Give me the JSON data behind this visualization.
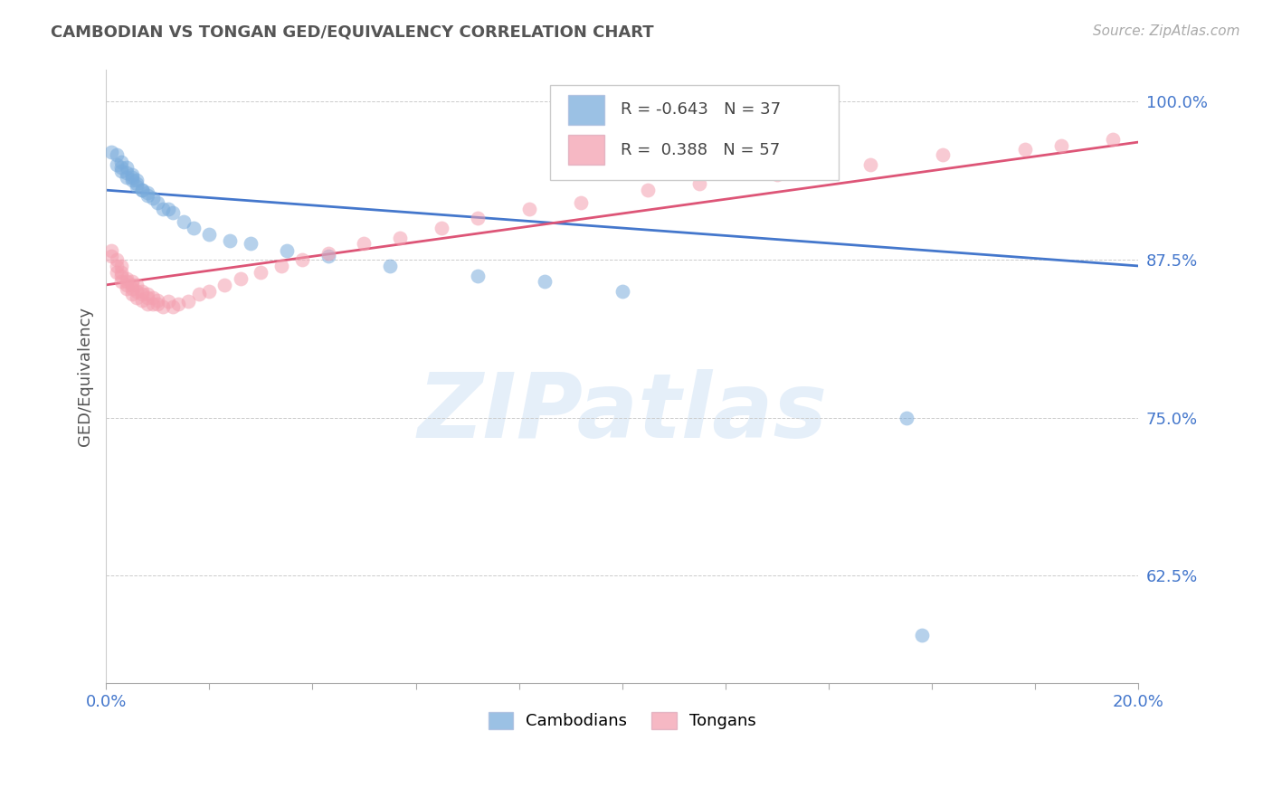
{
  "title": "CAMBODIAN VS TONGAN GED/EQUIVALENCY CORRELATION CHART",
  "source": "Source: ZipAtlas.com",
  "ylabel": "GED/Equivalency",
  "legend_blue_label": "Cambodians",
  "legend_pink_label": "Tongans",
  "R_blue": -0.643,
  "N_blue": 37,
  "R_pink": 0.388,
  "N_pink": 57,
  "xmin": 0.0,
  "xmax": 0.2,
  "ymin": 0.54,
  "ymax": 1.025,
  "yticks": [
    0.625,
    0.75,
    0.875,
    1.0
  ],
  "ytick_labels": [
    "62.5%",
    "75.0%",
    "87.5%",
    "100.0%"
  ],
  "background_color": "#ffffff",
  "blue_color": "#7aacdc",
  "pink_color": "#f4a0b0",
  "blue_line_color": "#4477cc",
  "pink_line_color": "#dd5577",
  "blue_line_y0": 0.93,
  "blue_line_y1": 0.87,
  "pink_line_y0": 0.855,
  "pink_line_y1": 0.968,
  "watermark_text": "ZIPatlas",
  "cam_x": [
    0.001,
    0.002,
    0.002,
    0.003,
    0.003,
    0.003,
    0.004,
    0.004,
    0.004,
    0.005,
    0.005,
    0.005,
    0.006,
    0.006,
    0.006,
    0.007,
    0.007,
    0.008,
    0.008,
    0.009,
    0.01,
    0.011,
    0.012,
    0.013,
    0.015,
    0.017,
    0.02,
    0.024,
    0.028,
    0.035,
    0.043,
    0.055,
    0.072,
    0.085,
    0.1,
    0.155,
    0.158
  ],
  "cam_y": [
    0.96,
    0.95,
    0.958,
    0.945,
    0.952,
    0.948,
    0.94,
    0.948,
    0.944,
    0.942,
    0.94,
    0.938,
    0.938,
    0.935,
    0.933,
    0.93,
    0.93,
    0.928,
    0.926,
    0.924,
    0.92,
    0.915,
    0.915,
    0.912,
    0.905,
    0.9,
    0.895,
    0.89,
    0.888,
    0.882,
    0.878,
    0.87,
    0.862,
    0.858,
    0.85,
    0.75,
    0.578
  ],
  "tong_x": [
    0.001,
    0.001,
    0.002,
    0.002,
    0.002,
    0.003,
    0.003,
    0.003,
    0.003,
    0.004,
    0.004,
    0.004,
    0.004,
    0.005,
    0.005,
    0.005,
    0.005,
    0.006,
    0.006,
    0.006,
    0.007,
    0.007,
    0.007,
    0.008,
    0.008,
    0.008,
    0.009,
    0.009,
    0.01,
    0.01,
    0.011,
    0.012,
    0.013,
    0.014,
    0.016,
    0.018,
    0.02,
    0.023,
    0.026,
    0.03,
    0.034,
    0.038,
    0.043,
    0.05,
    0.057,
    0.065,
    0.072,
    0.082,
    0.092,
    0.105,
    0.115,
    0.13,
    0.148,
    0.162,
    0.178,
    0.185,
    0.195
  ],
  "tong_y": [
    0.882,
    0.878,
    0.875,
    0.87,
    0.865,
    0.87,
    0.865,
    0.862,
    0.858,
    0.86,
    0.858,
    0.855,
    0.852,
    0.858,
    0.855,
    0.852,
    0.848,
    0.855,
    0.85,
    0.845,
    0.85,
    0.848,
    0.843,
    0.848,
    0.845,
    0.84,
    0.845,
    0.84,
    0.843,
    0.84,
    0.838,
    0.842,
    0.838,
    0.84,
    0.842,
    0.848,
    0.85,
    0.855,
    0.86,
    0.865,
    0.87,
    0.875,
    0.88,
    0.888,
    0.892,
    0.9,
    0.908,
    0.915,
    0.92,
    0.93,
    0.935,
    0.942,
    0.95,
    0.958,
    0.962,
    0.965,
    0.97
  ]
}
